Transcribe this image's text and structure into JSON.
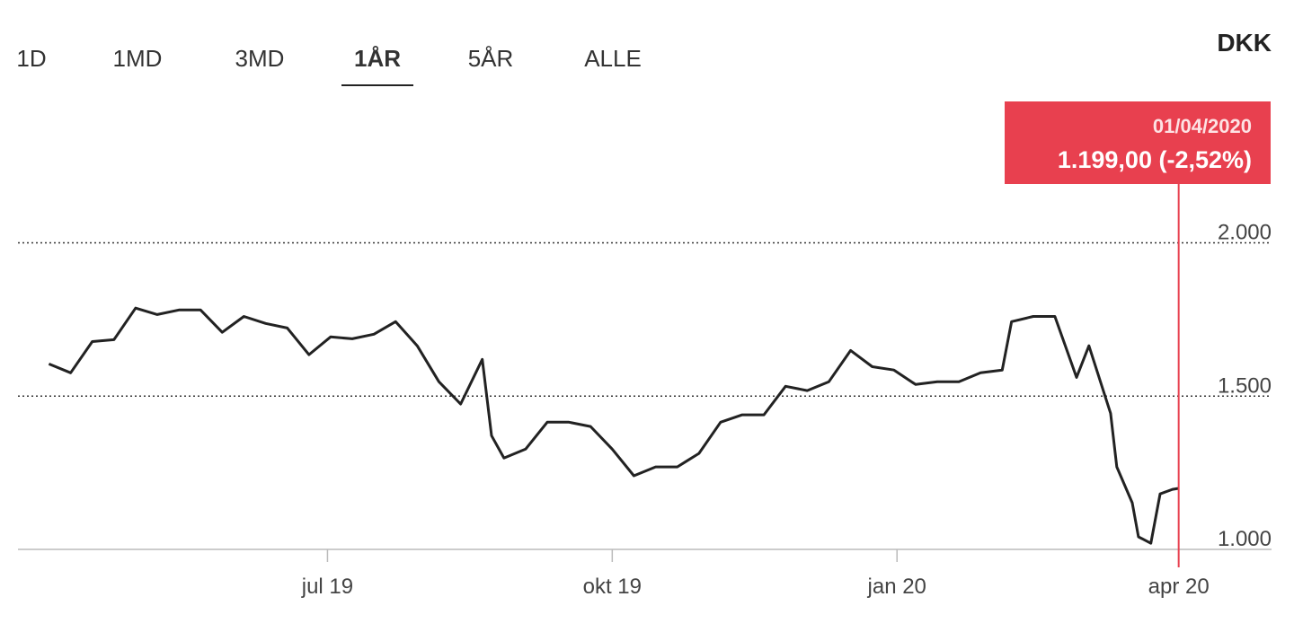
{
  "tabs": [
    "1D",
    "1MD",
    "3MD",
    "1ÅR",
    "5ÅR",
    "ALLE"
  ],
  "selected_tab": 3,
  "currency": "DKK",
  "chart_data": {
    "type": "line",
    "x": [
      "2019-04-02",
      "2019-04-09",
      "2019-04-16",
      "2019-04-23",
      "2019-04-30",
      "2019-05-07",
      "2019-05-14",
      "2019-05-21",
      "2019-05-28",
      "2019-06-04",
      "2019-06-11",
      "2019-06-18",
      "2019-06-25",
      "2019-07-02",
      "2019-07-09",
      "2019-07-16",
      "2019-07-23",
      "2019-07-30",
      "2019-08-06",
      "2019-08-13",
      "2019-08-20",
      "2019-08-23",
      "2019-08-27",
      "2019-09-03",
      "2019-09-10",
      "2019-09-17",
      "2019-09-24",
      "2019-10-01",
      "2019-10-08",
      "2019-10-15",
      "2019-10-22",
      "2019-10-29",
      "2019-11-05",
      "2019-11-12",
      "2019-11-19",
      "2019-11-26",
      "2019-12-03",
      "2019-12-10",
      "2019-12-17",
      "2019-12-24",
      "2019-12-31",
      "2020-01-07",
      "2020-01-14",
      "2020-01-21",
      "2020-01-28",
      "2020-02-04",
      "2020-02-07",
      "2020-02-14",
      "2020-02-21",
      "2020-02-28",
      "2020-03-03",
      "2020-03-10",
      "2020-03-12",
      "2020-03-17",
      "2020-03-19",
      "2020-03-23",
      "2020-03-26",
      "2020-03-30",
      "2020-04-01"
    ],
    "series": [
      {
        "color": "#222222",
        "values": [
          1605,
          1576,
          1678,
          1684,
          1787,
          1766,
          1781,
          1781,
          1708,
          1760,
          1737,
          1722,
          1635,
          1693,
          1687,
          1702,
          1743,
          1664,
          1547,
          1474,
          1620,
          1371,
          1298,
          1327,
          1415,
          1415,
          1401,
          1327,
          1240,
          1269,
          1269,
          1313,
          1415,
          1439,
          1439,
          1532,
          1518,
          1547,
          1649,
          1596,
          1585,
          1538,
          1547,
          1547,
          1576,
          1585,
          1743,
          1760,
          1760,
          1561,
          1664,
          1444,
          1269,
          1152,
          1041,
          1020,
          1181,
          1196,
          1199
        ]
      }
    ],
    "xlim": [
      "2019-03-23",
      "2020-05-01"
    ],
    "xticks": [
      {
        "value": "2019-07-01",
        "label": "jul 19"
      },
      {
        "value": "2019-10-01",
        "label": "okt 19"
      },
      {
        "value": "2020-01-01",
        "label": "jan 20"
      },
      {
        "value": "2020-04-01",
        "label": "apr 20"
      }
    ],
    "ylim": [
      1000,
      2470
    ],
    "yticks": [
      {
        "value": 1000,
        "label": "1.000"
      },
      {
        "value": 1500,
        "label": "1.500"
      },
      {
        "value": 2000,
        "label": "2.000"
      }
    ],
    "grid": true,
    "tooltip": {
      "x": "2020-04-01",
      "date": "01/04/2020",
      "value": 1199,
      "value_label": "1.199,00 (-2,52%)",
      "color": "#e8404f"
    }
  }
}
